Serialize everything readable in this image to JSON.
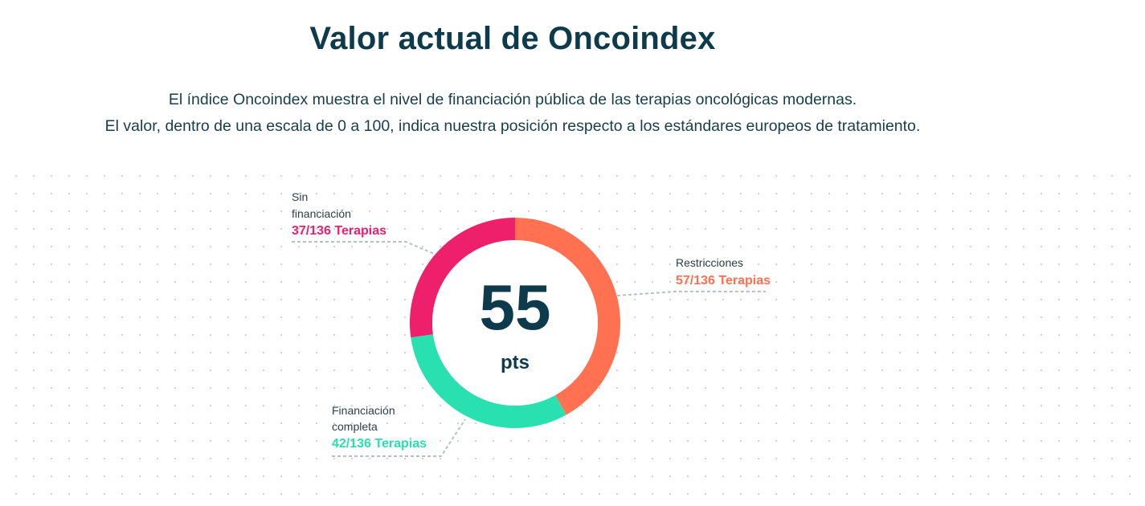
{
  "header": {
    "title": "Valor actual de Oncoindex",
    "description_line1": "El índice Oncoindex muestra el nivel de financiación pública de las terapias oncológicas modernas.",
    "description_line2": "El valor, dentro de una escala de 0 a 100, indica nuestra posición respecto a los estándares europeos de tratamiento."
  },
  "chart_data": {
    "type": "pie",
    "donut": true,
    "center_value": "55",
    "center_unit": "pts",
    "total": 136,
    "slices": [
      {
        "label_line1": "Restricciones",
        "label_line2": "",
        "value": 57,
        "value_text": "57/136 Terapias",
        "color": "#ff7150"
      },
      {
        "label_line1": "Financiación",
        "label_line2": "completa",
        "value": 42,
        "value_text": "42/136 Terapias",
        "color": "#28e0b0"
      },
      {
        "label_line1": "Sin",
        "label_line2": "financiación",
        "value": 37,
        "value_text": "37/136 Terapias",
        "color": "#ee1f6b"
      }
    ],
    "title": "",
    "legend": "callouts"
  },
  "colors": {
    "heading": "#0d3b4b",
    "dots": "#c9ced2",
    "leader": "#b8bfc6"
  }
}
